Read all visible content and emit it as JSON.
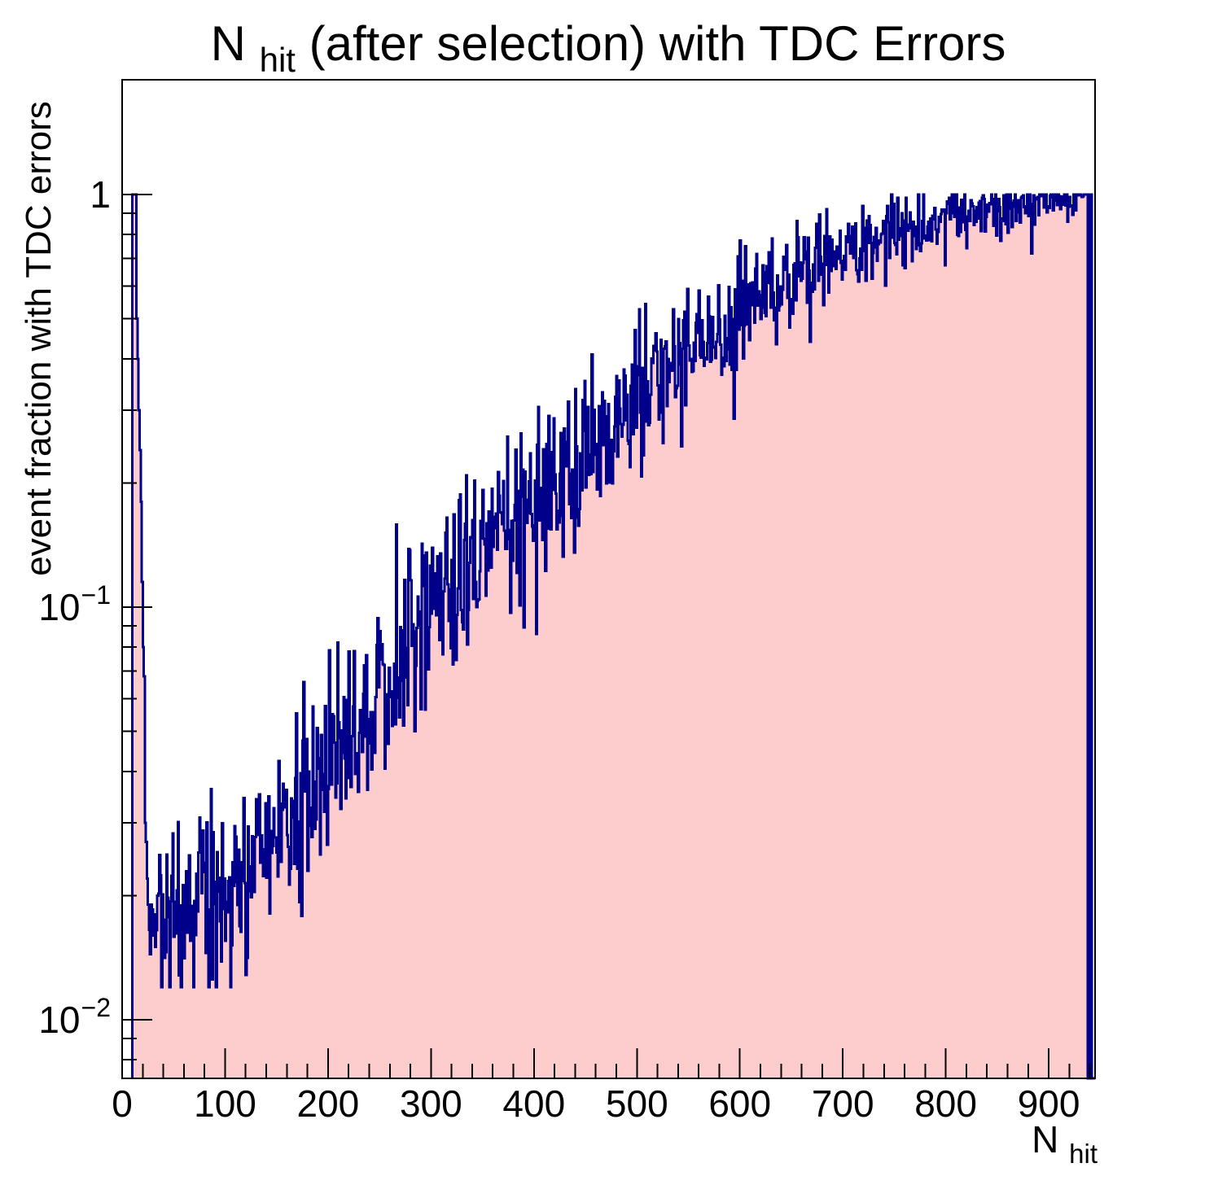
{
  "chart_data": {
    "type": "bar",
    "subtype": "histogram-step-filled",
    "title": {
      "pre": "N",
      "sub": "hit",
      "post": " (after selection) with TDC Errors"
    },
    "xlabel": {
      "pre": "N",
      "sub": "hit"
    },
    "ylabel": "event fraction with TDC errors",
    "x_range": [
      0,
      945
    ],
    "bin_width": 1,
    "y_scale": "log",
    "y_range": [
      0.0072,
      1.9
    ],
    "grid": false,
    "legend": "none",
    "colors": {
      "line": "#00008b",
      "fill": "#fdcccc",
      "frame": "#000000",
      "background": "#ffffff"
    },
    "x_ticks": {
      "major_values": [
        0,
        100,
        200,
        300,
        400,
        500,
        600,
        700,
        800,
        900
      ],
      "labels": [
        "0",
        "100",
        "200",
        "300",
        "400",
        "500",
        "600",
        "700",
        "800",
        "900"
      ],
      "minor_step": 20,
      "major_step": 100
    },
    "y_ticks": [
      {
        "value": 1,
        "base": "1",
        "exp": ""
      },
      {
        "value": 0.1,
        "base": "10",
        "exp": "−1"
      },
      {
        "value": 0.01,
        "base": "10",
        "exp": "−2"
      }
    ],
    "spike": [
      [
        10,
        1.0
      ],
      [
        11,
        1.0
      ],
      [
        12,
        1.0
      ],
      [
        13,
        1.0
      ],
      [
        14,
        0.5
      ],
      [
        15,
        0.4
      ],
      [
        16,
        0.3
      ],
      [
        17,
        0.24
      ],
      [
        18,
        0.18
      ],
      [
        19,
        0.115
      ],
      [
        20,
        0.08
      ],
      [
        21,
        0.068
      ],
      [
        22,
        0.03
      ],
      [
        23,
        0.027
      ],
      [
        24,
        0.022
      ],
      [
        25,
        0.019
      ],
      [
        26,
        0.0165
      ],
      [
        27,
        0.0144
      ],
      [
        28,
        0.019
      ],
      [
        29,
        0.0185
      ],
      [
        30,
        0.016
      ],
      [
        31,
        0.018
      ]
    ],
    "anchors": [
      [
        32,
        0.0175
      ],
      [
        50,
        0.0185
      ],
      [
        70,
        0.019
      ],
      [
        90,
        0.0195
      ],
      [
        110,
        0.022
      ],
      [
        130,
        0.0245
      ],
      [
        150,
        0.028
      ],
      [
        170,
        0.032
      ],
      [
        190,
        0.038
      ],
      [
        210,
        0.046
      ],
      [
        230,
        0.054
      ],
      [
        250,
        0.063
      ],
      [
        270,
        0.074
      ],
      [
        290,
        0.087
      ],
      [
        310,
        0.102
      ],
      [
        330,
        0.118
      ],
      [
        350,
        0.135
      ],
      [
        370,
        0.155
      ],
      [
        390,
        0.17
      ],
      [
        410,
        0.19
      ],
      [
        430,
        0.215
      ],
      [
        450,
        0.24
      ],
      [
        470,
        0.27
      ],
      [
        490,
        0.31
      ],
      [
        510,
        0.345
      ],
      [
        530,
        0.38
      ],
      [
        550,
        0.42
      ],
      [
        570,
        0.46
      ],
      [
        590,
        0.5
      ],
      [
        610,
        0.545
      ],
      [
        630,
        0.59
      ],
      [
        650,
        0.63
      ],
      [
        670,
        0.675
      ],
      [
        690,
        0.715
      ],
      [
        710,
        0.75
      ],
      [
        730,
        0.785
      ],
      [
        750,
        0.815
      ],
      [
        770,
        0.845
      ],
      [
        790,
        0.875
      ],
      [
        810,
        0.9
      ],
      [
        830,
        0.92
      ],
      [
        850,
        0.94
      ],
      [
        870,
        0.955
      ],
      [
        890,
        0.97
      ],
      [
        910,
        0.98
      ],
      [
        925,
        0.988
      ],
      [
        937,
        0.995
      ]
    ],
    "tail": [
      [
        938,
        0
      ],
      [
        939,
        1.0
      ],
      [
        940,
        0
      ],
      [
        941,
        1.0
      ],
      [
        942,
        0
      ],
      [
        943,
        0
      ],
      [
        944,
        0
      ]
    ],
    "noise": {
      "seed": 20,
      "sigma_base": 0.055,
      "sigma_slope": 0.22,
      "dip_prob": 0.01,
      "dip_shift": 3,
      "dip_min": 0.25,
      "floor": 0.012
    }
  }
}
